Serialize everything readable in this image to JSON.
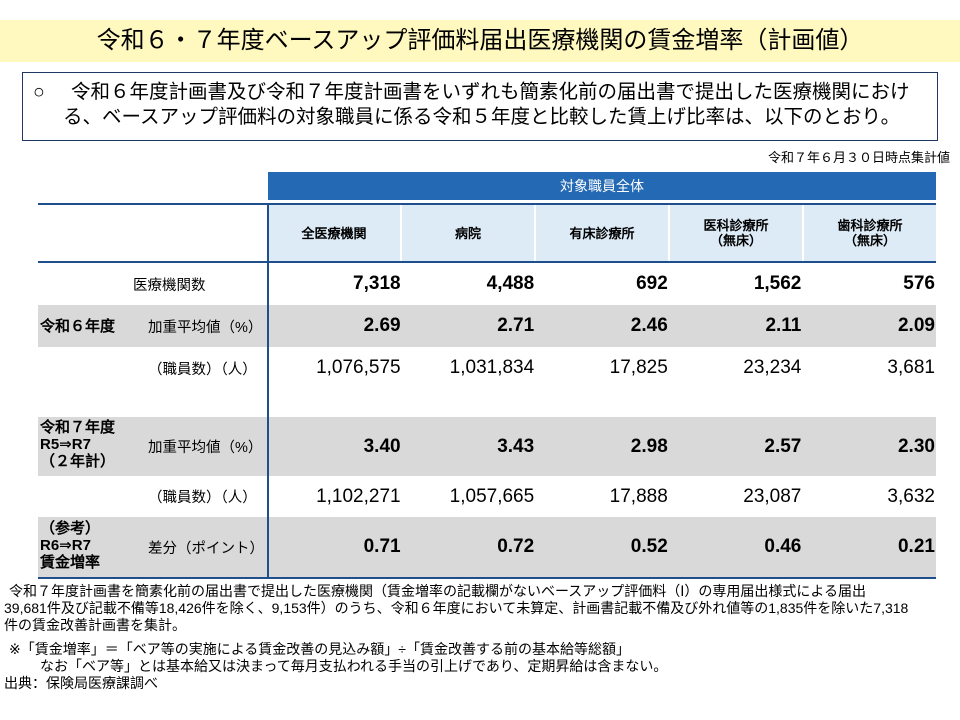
{
  "title": "令和６・７年度ベースアップ評価料届出医療機関の賃金増率（計画値）",
  "summary": {
    "bullet": "○",
    "lines": [
      "令和６年度計画書及び令和７年度計画書をいずれも簡素化前の届出書で提出した医療機関におけ",
      "る、ベースアップ評価料の対象職員に係る令和５年度と比較した賃上げ比率は、以下のとおり。"
    ]
  },
  "as_of": "令和７年６月３０日時点集計値",
  "table": {
    "group_header": "対象職員全体",
    "columns": [
      [
        "全医療機関"
      ],
      [
        "病院"
      ],
      [
        "有床診療所"
      ],
      [
        "医科診療所",
        "（無床）"
      ],
      [
        "歯科診療所",
        "（無床）"
      ]
    ],
    "rows": [
      {
        "item": "医療機関数",
        "values": [
          "7,318",
          "4,488",
          "692",
          "1,562",
          "576"
        ]
      },
      {
        "group": [
          "令和６年度"
        ],
        "item": "加重平均値（%）",
        "values": [
          "2.69",
          "2.71",
          "2.46",
          "2.11",
          "2.09"
        ]
      },
      {
        "item": "（職員数）（人）",
        "values": [
          "1,076,575",
          "1,031,834",
          "17,825",
          "23,234",
          "3,681"
        ]
      },
      {
        "group": [
          "令和７年度",
          "R5⇒R7",
          "（２年計）"
        ],
        "item": "加重平均値（%）",
        "values": [
          "3.40",
          "3.43",
          "2.98",
          "2.57",
          "2.30"
        ]
      },
      {
        "item": "（職員数）（人）",
        "values": [
          "1,102,271",
          "1,057,665",
          "17,888",
          "23,087",
          "3,632"
        ]
      },
      {
        "group": [
          "（参考）",
          "R6⇒R7",
          "賃金増率"
        ],
        "item": "差分（ポイント）",
        "values": [
          "0.71",
          "0.72",
          "0.52",
          "0.46",
          "0.21"
        ]
      }
    ]
  },
  "notes": {
    "paragraph": [
      "令和７年度計画書を簡素化前の届出書で提出した医療機関（賃金増率の記載欄がないベースアップ評価料（Ⅰ）の専用届出様式による届出",
      "39,681件及び記載不備等18,426件を除く、9,153件）のうち、令和６年度において未算定、計画書記載不備及び外れ値等の1,835件を除いた7,318",
      "件の賃金改善計画書を集計。"
    ],
    "definition": "※「賃金増率」＝「ベア等の実施による賃金改善の見込み額」÷「賃金改善する前の基本給等総額」",
    "definition_detail": "なお「ベア等」とは基本給又は決まって毎月支払われる手当の引上げであり、定期昇給は含まない。",
    "source": "出典：保険局医療課調べ"
  },
  "colors": {
    "title_band": "#FFF8BF",
    "summary_border": "#1F3864",
    "header_band": "#2369B3",
    "header_cells": "#DDEBF7",
    "row_shade": "#D9D9D9",
    "table_rules": "#1F4E8C"
  }
}
